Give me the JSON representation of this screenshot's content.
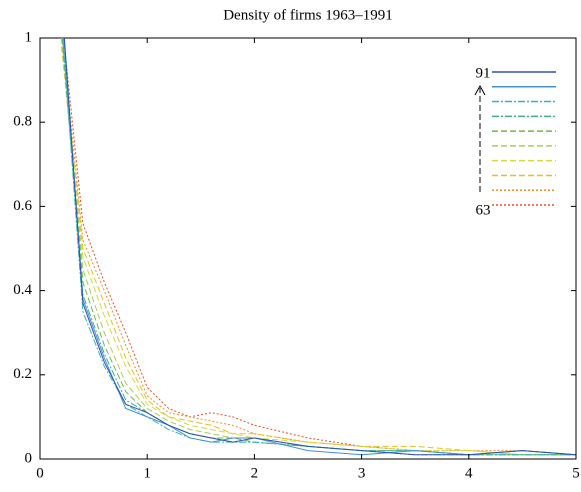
{
  "chart_data": {
    "type": "line",
    "title": "Density of firms 1963–1991",
    "x": [
      0.2,
      0.4,
      0.6,
      0.8,
      1.0,
      1.2,
      1.4,
      1.6,
      1.8,
      2.0,
      2.5,
      3.0,
      3.5,
      4.0,
      4.5,
      5.0
    ],
    "series": [
      {
        "color": "#e8502a",
        "style": "dotted",
        "values": [
          1.05,
          0.56,
          0.42,
          0.3,
          0.17,
          0.12,
          0.1,
          0.11,
          0.1,
          0.08,
          0.05,
          0.03,
          0.02,
          0.01,
          0.02,
          0.01
        ]
      },
      {
        "color": "#f08c30",
        "style": "dotted",
        "values": [
          1.02,
          0.52,
          0.4,
          0.27,
          0.15,
          0.11,
          0.1,
          0.09,
          0.08,
          0.06,
          0.04,
          0.03,
          0.02,
          0.02,
          0.02,
          0.01
        ]
      },
      {
        "color": "#e8c020",
        "style": "dashed",
        "values": [
          1.0,
          0.5,
          0.37,
          0.24,
          0.14,
          0.1,
          0.09,
          0.08,
          0.06,
          0.06,
          0.04,
          0.03,
          0.03,
          0.02,
          0.01,
          0.01
        ]
      },
      {
        "color": "#d8d840",
        "style": "dashed",
        "values": [
          0.98,
          0.48,
          0.34,
          0.22,
          0.13,
          0.1,
          0.08,
          0.07,
          0.06,
          0.05,
          0.04,
          0.03,
          0.02,
          0.02,
          0.01,
          0.01
        ]
      },
      {
        "color": "#a8d050",
        "style": "dashed",
        "values": [
          1.0,
          0.45,
          0.3,
          0.18,
          0.12,
          0.09,
          0.07,
          0.06,
          0.05,
          0.05,
          0.03,
          0.02,
          0.02,
          0.01,
          0.01,
          0.01
        ]
      },
      {
        "color": "#70b848",
        "style": "dashed",
        "values": [
          1.02,
          0.42,
          0.27,
          0.16,
          0.11,
          0.08,
          0.06,
          0.05,
          0.05,
          0.04,
          0.03,
          0.02,
          0.02,
          0.01,
          0.01,
          0.01
        ]
      },
      {
        "color": "#40b080",
        "style": "dashdot",
        "values": [
          1.03,
          0.39,
          0.25,
          0.14,
          0.11,
          0.08,
          0.06,
          0.05,
          0.04,
          0.04,
          0.03,
          0.02,
          0.01,
          0.01,
          0.01,
          0.01
        ]
      },
      {
        "color": "#30b8c8",
        "style": "dashdot",
        "values": [
          1.05,
          0.35,
          0.22,
          0.13,
          0.1,
          0.07,
          0.05,
          0.04,
          0.04,
          0.04,
          0.03,
          0.02,
          0.02,
          0.01,
          0.01,
          0.01
        ]
      },
      {
        "color": "#4090d8",
        "style": "solid",
        "values": [
          1.08,
          0.38,
          0.24,
          0.12,
          0.1,
          0.08,
          0.05,
          0.04,
          0.05,
          0.05,
          0.02,
          0.01,
          0.02,
          0.01,
          0.02,
          0.01
        ]
      },
      {
        "color": "#3050b0",
        "style": "solid",
        "values": [
          1.1,
          0.37,
          0.23,
          0.13,
          0.11,
          0.08,
          0.06,
          0.05,
          0.04,
          0.05,
          0.03,
          0.02,
          0.01,
          0.01,
          0.02,
          0.01
        ]
      }
    ],
    "xlim": [
      0,
      5
    ],
    "xticks": [
      0,
      1,
      2,
      3,
      4,
      5
    ],
    "ylim": [
      0,
      1
    ],
    "yticks": [
      0,
      0.2,
      0.4,
      0.6,
      0.8,
      1
    ],
    "legend_top_label": "91",
    "legend_bottom_label": "63"
  }
}
